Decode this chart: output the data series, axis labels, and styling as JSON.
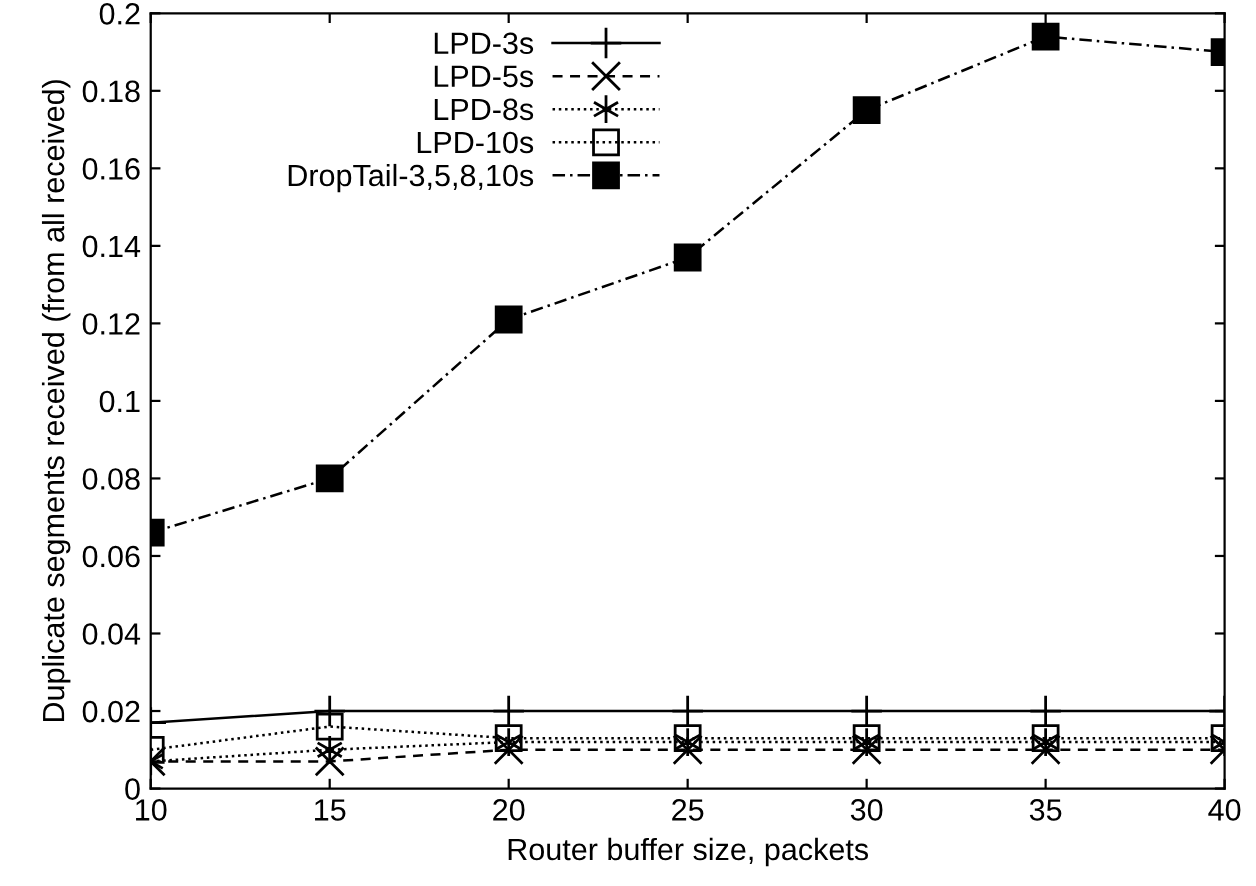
{
  "chart_data": {
    "type": "line",
    "xlabel": "Router buffer size, packets",
    "ylabel": "Duplicate segments received (from all received)",
    "x": [
      10,
      15,
      20,
      25,
      30,
      35,
      40
    ],
    "xlim": [
      10,
      40
    ],
    "xticks": [
      10,
      15,
      20,
      25,
      30,
      35,
      40
    ],
    "ylim": [
      0,
      0.2
    ],
    "yticks": [
      0,
      0.02,
      0.04,
      0.06,
      0.08,
      0.1,
      0.12,
      0.14,
      0.16,
      0.18,
      0.2
    ],
    "legend": "top",
    "grid": false,
    "series": [
      {
        "name": "LPD-3s",
        "color": "#000000",
        "marker": "plus",
        "line_style": "solid",
        "values": [
          0.017,
          0.02,
          0.02,
          0.02,
          0.02,
          0.02,
          0.02
        ]
      },
      {
        "name": "LPD-5s",
        "color": "#000000",
        "marker": "cross",
        "line_style": "dashed",
        "values": [
          0.007,
          0.007,
          0.01,
          0.01,
          0.01,
          0.01,
          0.01
        ]
      },
      {
        "name": "LPD-8s",
        "color": "#000000",
        "marker": "cross",
        "line_style": "dotted",
        "values": [
          0.007,
          0.01,
          0.012,
          0.012,
          0.012,
          0.012,
          0.012
        ]
      },
      {
        "name": "LPD-10s",
        "color": "#000000",
        "marker": "square",
        "line_style": "dotted",
        "values": [
          0.01,
          0.016,
          0.013,
          0.013,
          0.013,
          0.013,
          0.013
        ]
      },
      {
        "name": "DropTail-3,5,8,10s",
        "color": "#000000",
        "marker": "square",
        "line_style": "dashdot",
        "values": [
          0.066,
          0.08,
          0.121,
          0.137,
          0.175,
          0.194,
          0.19
        ]
      }
    ]
  }
}
